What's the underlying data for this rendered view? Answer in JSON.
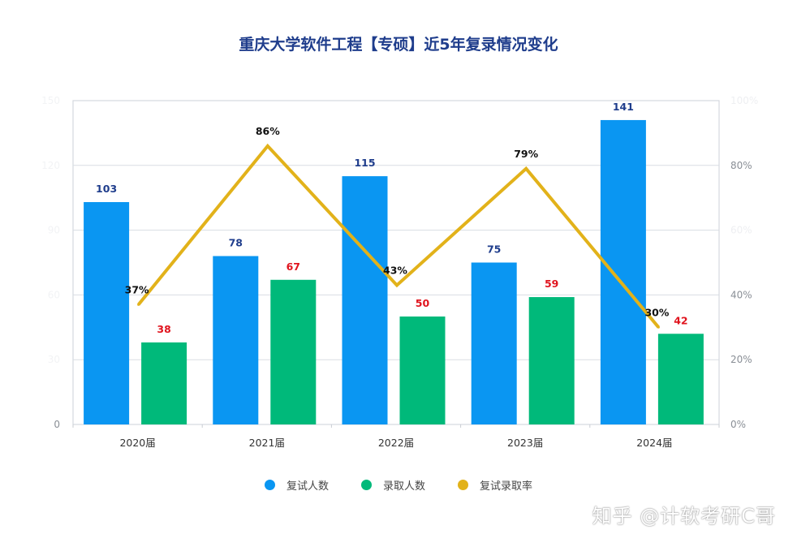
{
  "chart_data": {
    "type": "bar",
    "title": "重庆大学软件工程【专硕】近5年复录情况变化",
    "categories": [
      "2020届",
      "2021届",
      "2022届",
      "2023届",
      "2024届"
    ],
    "series": [
      {
        "name": "复试人数",
        "type": "bar",
        "axis": "left",
        "color": "#0a96f2",
        "label_color": "#1f3d8c",
        "values": [
          103,
          78,
          115,
          75,
          141
        ]
      },
      {
        "name": "录取人数",
        "type": "bar",
        "axis": "left",
        "color": "#00b97a",
        "label_color": "#e0141e",
        "values": [
          38,
          67,
          50,
          59,
          42
        ]
      },
      {
        "name": "复试录取率",
        "type": "line",
        "axis": "right",
        "color": "#e2b21a",
        "label_color": "#111111",
        "values": [
          37,
          86,
          43,
          79,
          30
        ],
        "labels": [
          "37%",
          "86%",
          "43%",
          "79%",
          "30%"
        ]
      }
    ],
    "ylim_left": [
      0,
      150
    ],
    "ylim_right": [
      0,
      100
    ],
    "left_ticks": [
      "0",
      "30",
      "60",
      "90",
      "120",
      "150"
    ],
    "right_ticks": [
      "0%",
      "20%",
      "40%",
      "60%",
      "80%",
      "100%"
    ],
    "grid": true,
    "legend_position": "bottom-center"
  },
  "watermark": "知乎 @计软考研C哥"
}
